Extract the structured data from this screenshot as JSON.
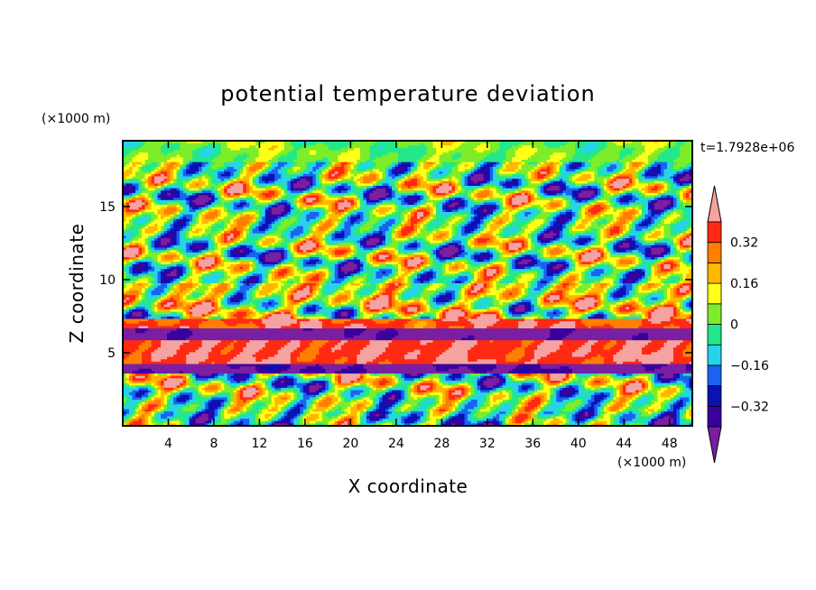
{
  "chart_data": {
    "type": "heatmap",
    "title": "potential temperature deviation",
    "xlabel": "X coordinate",
    "ylabel": "Z coordinate",
    "x_units": "(×1000 m)",
    "y_units": "(×1000 m)",
    "time_label": "t=1.7928e+06",
    "xlim": [
      0,
      50
    ],
    "ylim": [
      0,
      19.5
    ],
    "x_ticks": [
      4,
      8,
      12,
      16,
      20,
      24,
      28,
      32,
      36,
      40,
      44,
      48
    ],
    "x_tick_labels": [
      "4",
      "8",
      "12",
      "16",
      "20",
      "24",
      "28",
      "32",
      "36",
      "40",
      "44",
      "48"
    ],
    "y_ticks": [
      5,
      10,
      15
    ],
    "y_tick_labels": [
      "5",
      "10",
      "15"
    ],
    "colorbar": {
      "levels": [
        -0.4,
        -0.32,
        -0.24,
        -0.16,
        -0.08,
        0,
        0.08,
        0.16,
        0.24,
        0.32,
        0.4
      ],
      "tick_values": [
        0.32,
        0.16,
        0,
        -0.16,
        -0.32
      ],
      "tick_labels": [
        "0.32",
        "0.16",
        "0",
        "−0.16",
        "−0.32"
      ],
      "colors_low_to_high": [
        "#7a1fa2",
        "#3b009c",
        "#0a12b4",
        "#1a63f0",
        "#27d3ea",
        "#22e88a",
        "#7ded2a",
        "#ffff1a",
        "#ffb700",
        "#ff7f00",
        "#ff2a12",
        "#f5a3a0"
      ],
      "extends": "both"
    },
    "bands": [
      {
        "z": [
          0,
          1
        ],
        "description": "mixed",
        "mean": -0.05
      },
      {
        "z": [
          1,
          3.5
        ],
        "description": "mixed small-scale",
        "mean": 0.02
      },
      {
        "z": [
          3.5,
          4.3
        ],
        "description": "negative",
        "mean": -0.42
      },
      {
        "z": [
          4.3,
          5.8
        ],
        "description": "positive",
        "mean": 0.38
      },
      {
        "z": [
          5.8,
          6.6
        ],
        "description": "negative",
        "mean": -0.45
      },
      {
        "z": [
          6.6,
          7.3
        ],
        "description": "positive",
        "mean": 0.36
      },
      {
        "z": [
          7.3,
          9.8
        ],
        "description": "mixed",
        "mean": 0.1
      },
      {
        "z": [
          9.8,
          18.0
        ],
        "description": "mixed large blobs",
        "mean": 0
      },
      {
        "z": [
          18.0,
          19.5
        ],
        "description": "near zero",
        "mean": 0.03
      }
    ]
  }
}
